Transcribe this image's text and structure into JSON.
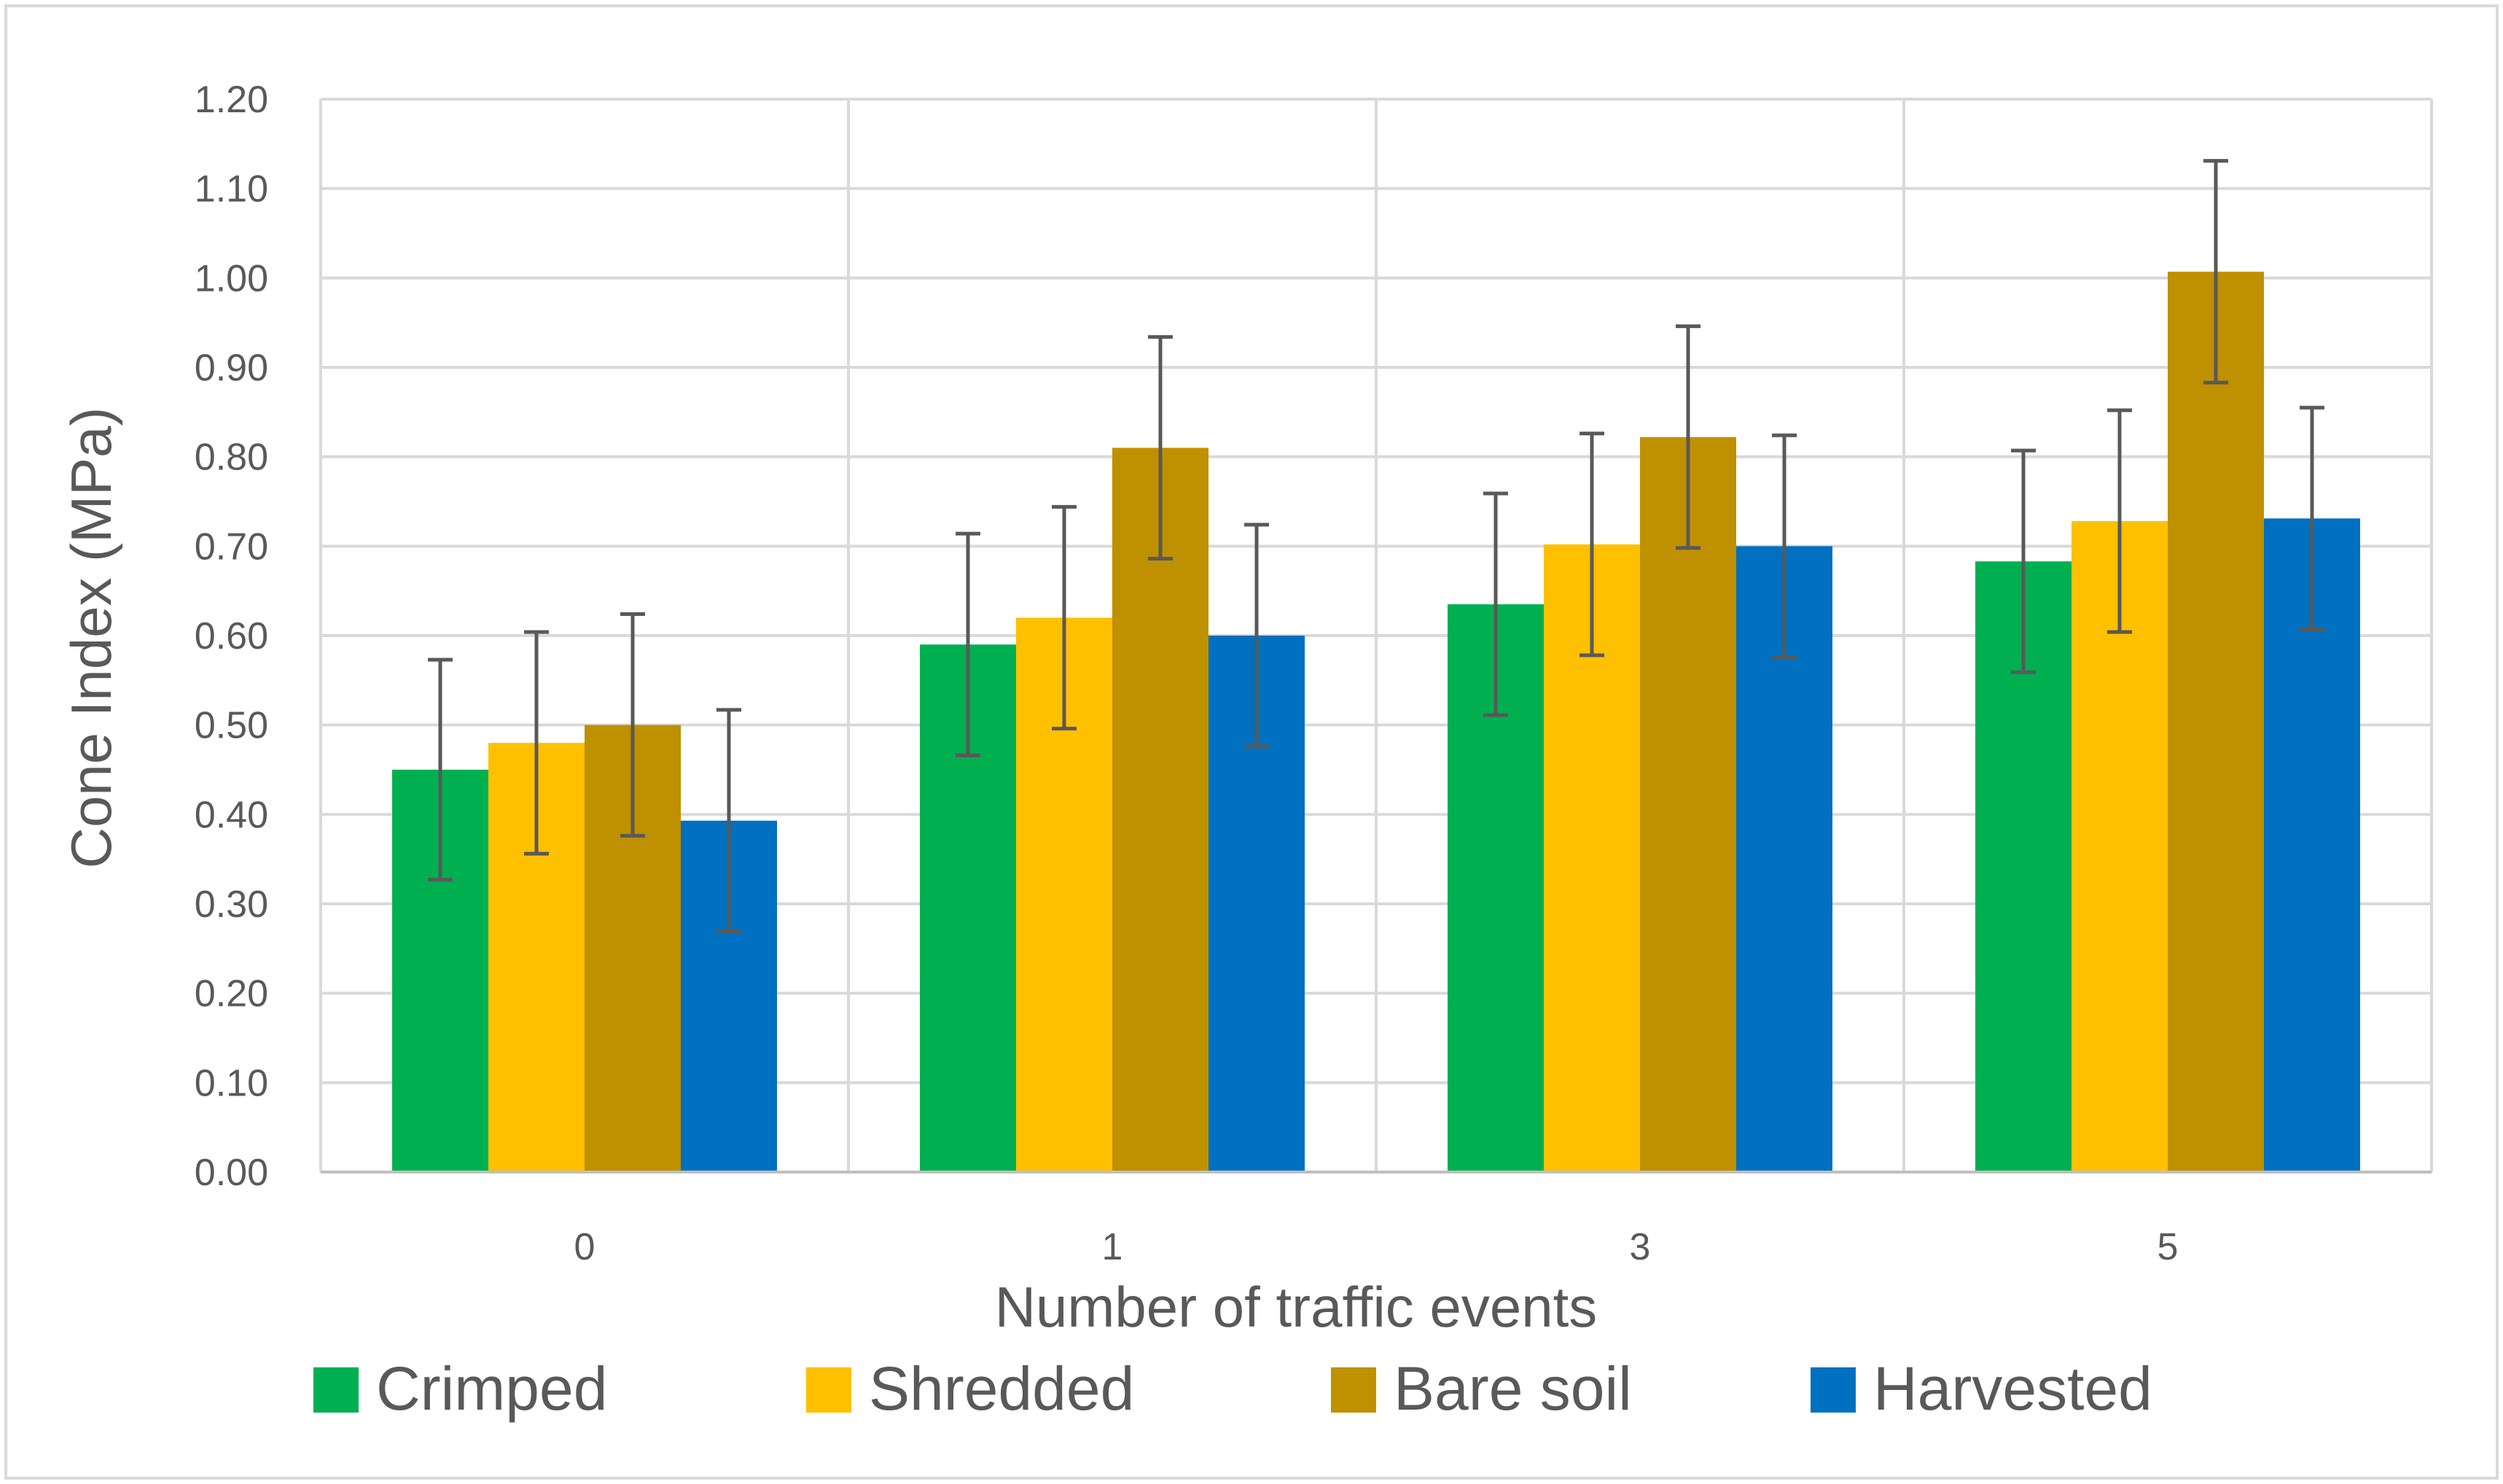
{
  "chart_data": {
    "type": "bar",
    "title": "",
    "xlabel": "Number of traffic events",
    "ylabel": "Cone Index  (MPa)",
    "categories": [
      "0",
      "1",
      "3",
      "5"
    ],
    "ylim": [
      0,
      1.2
    ],
    "yticks": [
      "0.00",
      "0.10",
      "0.20",
      "0.30",
      "0.40",
      "0.50",
      "0.60",
      "0.70",
      "0.80",
      "0.90",
      "1.00",
      "1.10",
      "1.20"
    ],
    "grid": true,
    "legend_position": "bottom",
    "series": [
      {
        "name": "Crimped",
        "color": "#00B050",
        "values": [
          0.45,
          0.59,
          0.635,
          0.683
        ],
        "errors": [
          0.123,
          0.124,
          0.124,
          0.124
        ]
      },
      {
        "name": "Shredded",
        "color": "#FFC000",
        "values": [
          0.48,
          0.62,
          0.702,
          0.728
        ],
        "errors": [
          0.124,
          0.124,
          0.124,
          0.124
        ]
      },
      {
        "name": "Bare soil",
        "color": "#BF9000",
        "values": [
          0.5,
          0.81,
          0.822,
          1.007
        ],
        "errors": [
          0.124,
          0.124,
          0.124,
          0.124
        ]
      },
      {
        "name": "Harvested",
        "color": "#0070C0",
        "values": [
          0.393,
          0.6,
          0.7,
          0.731
        ],
        "errors": [
          0.124,
          0.124,
          0.124,
          0.124
        ]
      }
    ]
  }
}
